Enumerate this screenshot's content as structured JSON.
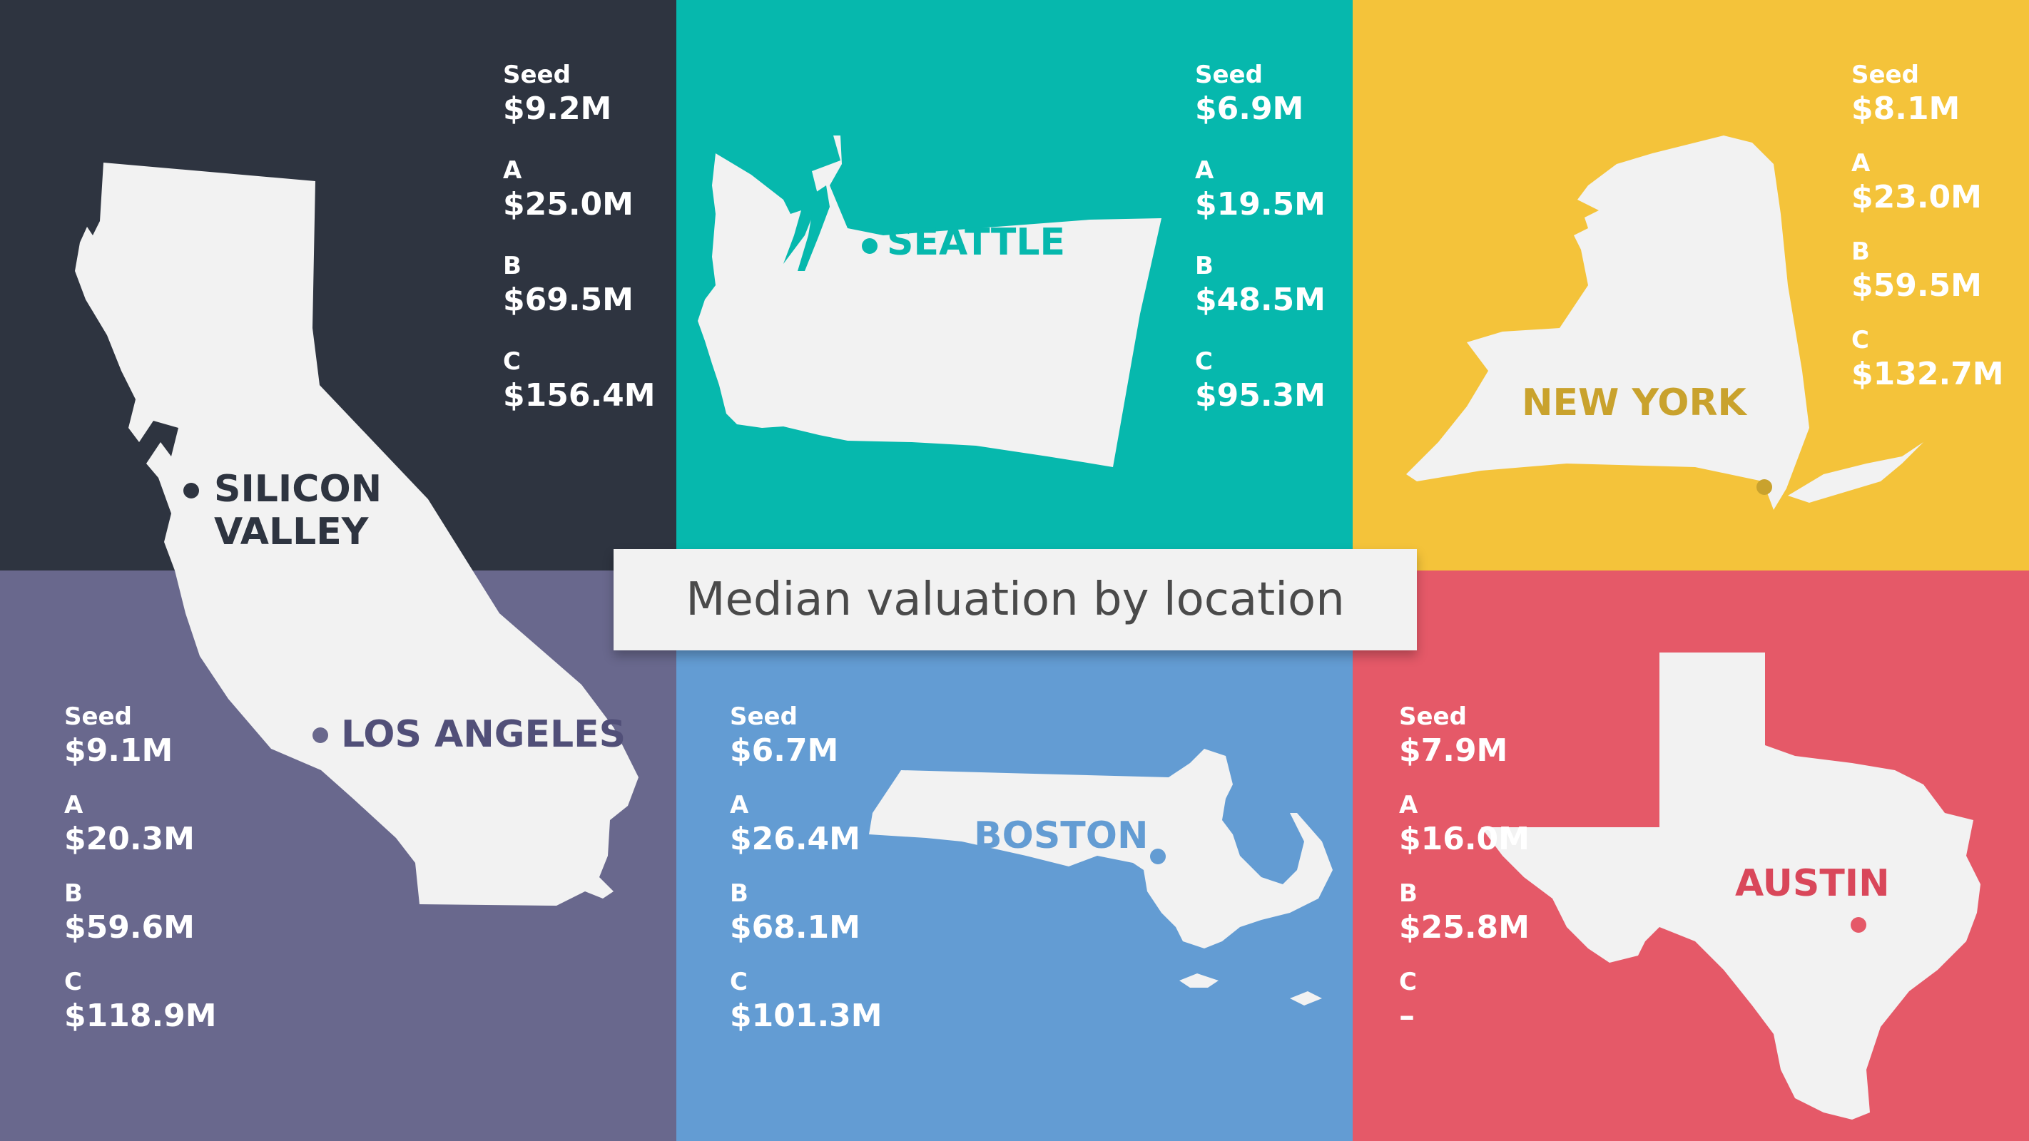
{
  "title": "Median valuation by location",
  "chart_data": {
    "type": "table",
    "title": "Median valuation by location",
    "rounds": [
      "Seed",
      "A",
      "B",
      "C"
    ],
    "locations": [
      {
        "name": "SILICON VALLEY",
        "line1": "SILICON",
        "line2": "VALLEY",
        "color": "#2e3440",
        "values": {
          "seed": "$9.2M",
          "a": "$25.0M",
          "b": "$69.5M",
          "c": "$156.4M"
        }
      },
      {
        "name": "SEATTLE",
        "color": "#06b8ad",
        "values": {
          "seed": "$6.9M",
          "a": "$19.5M",
          "b": "$48.5M",
          "c": "$95.3M"
        }
      },
      {
        "name": "NEW YORK",
        "color": "#f4c33a",
        "values": {
          "seed": "$8.1M",
          "a": "$23.0M",
          "b": "$59.5M",
          "c": "$132.7M"
        }
      },
      {
        "name": "LOS ANGELES",
        "color": "#69688d",
        "values": {
          "seed": "$9.1M",
          "a": "$20.3M",
          "b": "$59.6M",
          "c": "$118.9M"
        }
      },
      {
        "name": "BOSTON",
        "color": "#639cd3",
        "values": {
          "seed": "$6.7M",
          "a": "$26.4M",
          "b": "$68.1M",
          "c": "$101.3M"
        }
      },
      {
        "name": "AUSTIN",
        "color": "#e55968",
        "values": {
          "seed": "$7.9M",
          "a": "$16.0M",
          "b": "$25.8M",
          "c": "–"
        }
      }
    ]
  },
  "labels": {
    "seed": "Seed",
    "a": "A",
    "b": "B",
    "c": "C"
  }
}
